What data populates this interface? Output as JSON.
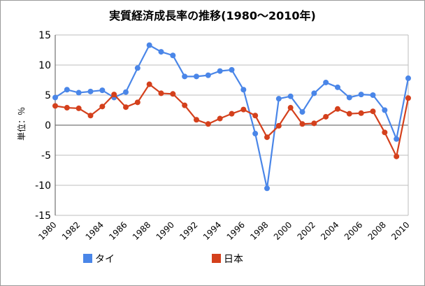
{
  "chart_data": {
    "type": "line",
    "title": "実質経済成長率の推移(1980～2010年)",
    "ylabel": "単位：％",
    "xlabel": "",
    "ylim": [
      -15,
      15
    ],
    "yticks": [
      15,
      10,
      5,
      0,
      -5,
      -10,
      -15
    ],
    "xlim": [
      1980,
      2010
    ],
    "xticks": [
      "1980",
      "1982",
      "1984",
      "1986",
      "1988",
      "1990",
      "1992",
      "1994",
      "1996",
      "1998",
      "2000",
      "2002",
      "2004",
      "2006",
      "2008",
      "2010"
    ],
    "x": [
      1980,
      1981,
      1982,
      1983,
      1984,
      1985,
      1986,
      1987,
      1988,
      1989,
      1990,
      1991,
      1992,
      1993,
      1994,
      1995,
      1996,
      1997,
      1998,
      1999,
      2000,
      2001,
      2002,
      2003,
      2004,
      2005,
      2006,
      2007,
      2008,
      2009,
      2010
    ],
    "grid": true,
    "legend_position": "bottom",
    "series": [
      {
        "name": "タイ",
        "color": "#4a86e8",
        "values": [
          4.6,
          5.9,
          5.4,
          5.6,
          5.8,
          4.6,
          5.5,
          9.5,
          13.3,
          12.2,
          11.6,
          8.1,
          8.1,
          8.3,
          9.0,
          9.2,
          5.9,
          -1.4,
          -10.5,
          4.4,
          4.8,
          2.2,
          5.3,
          7.1,
          6.3,
          4.6,
          5.1,
          5.0,
          2.5,
          -2.3,
          7.8
        ]
      },
      {
        "name": "日本",
        "color": "#d4401c",
        "values": [
          3.2,
          2.9,
          2.8,
          1.6,
          3.1,
          5.1,
          3.0,
          3.8,
          6.8,
          5.3,
          5.2,
          3.3,
          0.9,
          0.2,
          1.1,
          1.9,
          2.6,
          1.6,
          -2.0,
          -0.1,
          2.9,
          0.2,
          0.3,
          1.4,
          2.7,
          1.9,
          2.0,
          2.3,
          -1.2,
          -5.2,
          4.5
        ]
      }
    ]
  }
}
